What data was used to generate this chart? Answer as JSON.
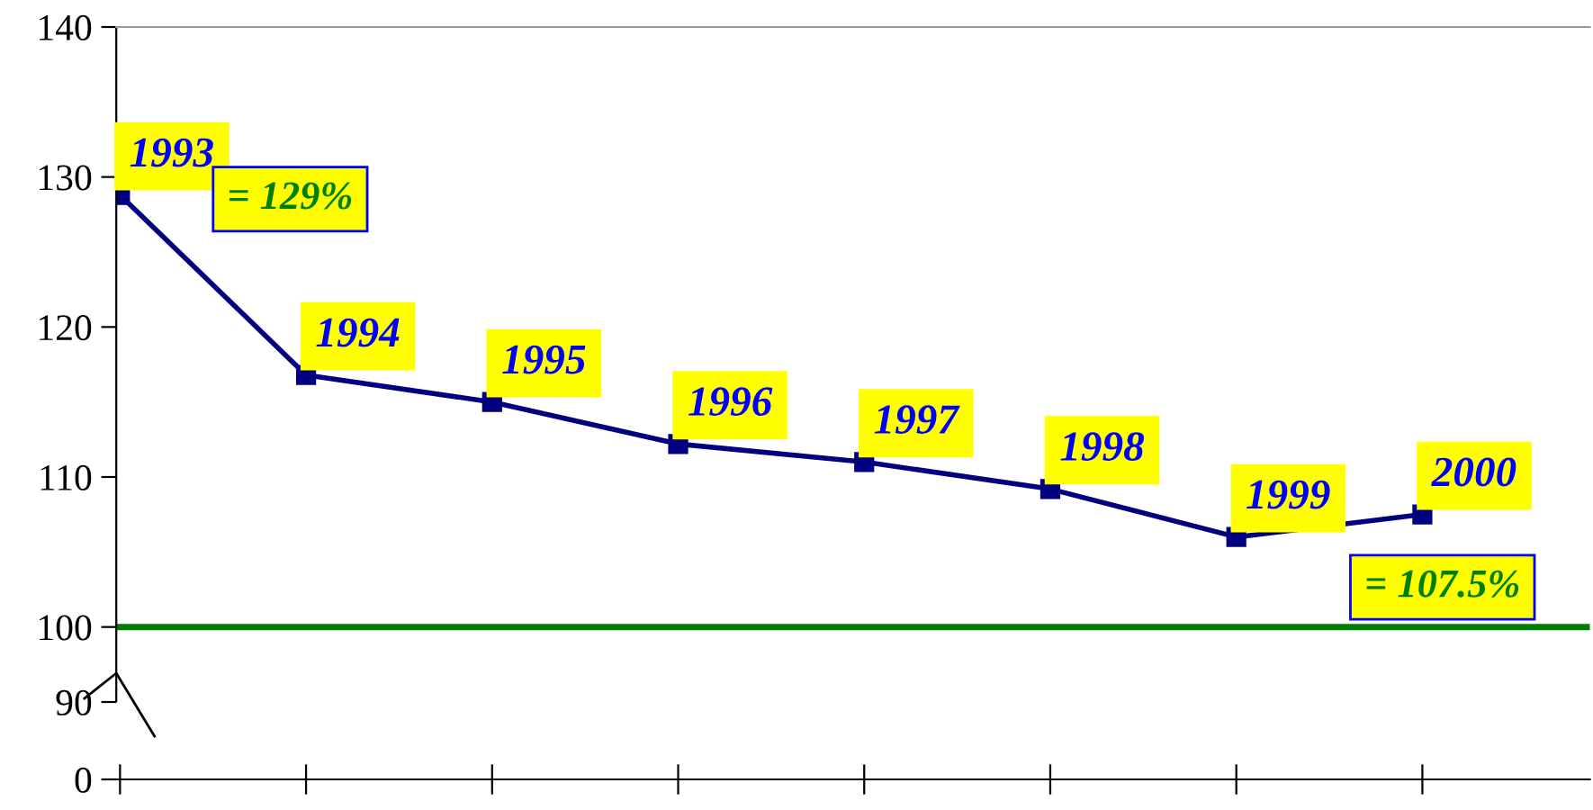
{
  "chart_data": [
    {
      "type": "line",
      "categories": [
        "1993",
        "1994",
        "1995",
        "1996",
        "1997",
        "1998",
        "1999",
        "2000"
      ],
      "series": [
        {
          "color": "#000080",
          "values": [
            128.8,
            116.8,
            115,
            112.2,
            111,
            109.2,
            106,
            107.5
          ]
        }
      ],
      "ylim": [
        95,
        140
      ],
      "yticks": [
        100,
        110,
        120,
        130,
        140
      ],
      "tick_labels": "y",
      "marker": "square",
      "line_style": "solid",
      "grid": false,
      "legend": false,
      "ref_lines": [
        {
          "axis": "y",
          "value": 100,
          "color": "#008000",
          "line_style": "solid"
        }
      ],
      "annotations": [
        "= 129%",
        "= 107.5%"
      ]
    },
    {
      "type": "line",
      "categories": [
        null,
        null,
        null,
        null,
        null,
        null,
        null,
        null
      ],
      "ylim": [
        0,
        90
      ],
      "yticks": [
        0,
        90
      ],
      "tick_labels": "y"
    }
  ]
}
